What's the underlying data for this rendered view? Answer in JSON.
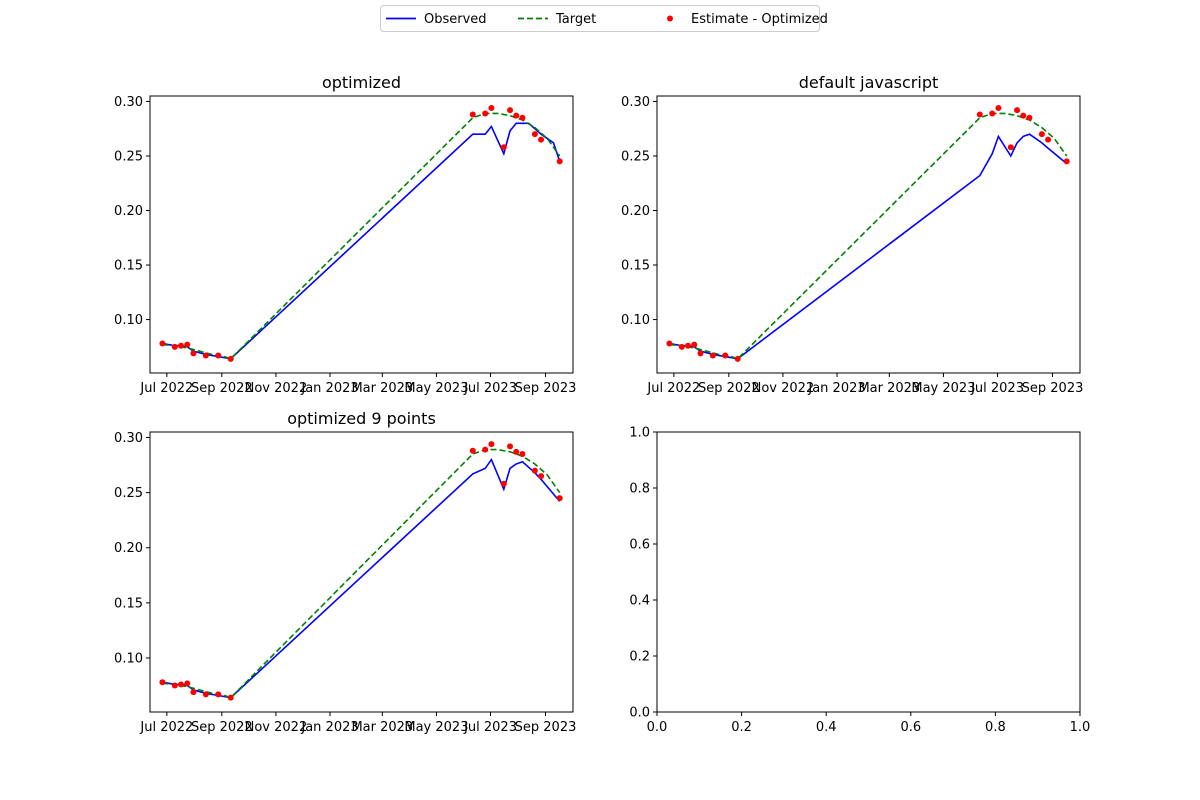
{
  "legend": {
    "items": [
      {
        "label": "Observed",
        "kind": "line",
        "color": "#0000ff"
      },
      {
        "label": "Target",
        "kind": "dashed",
        "color": "#008000"
      },
      {
        "label": "Estimate - Optimized",
        "kind": "marker",
        "color": "#ff0000"
      }
    ],
    "placement": "top-center"
  },
  "chart_data": [
    {
      "type": "line",
      "title": "optimized",
      "x_type": "date",
      "xlim": [
        "2022-06-12",
        "2023-10-02"
      ],
      "ylim": [
        0.051,
        0.305
      ],
      "x_ticks": [
        {
          "date": "2022-07-01",
          "label": "Jul 2022"
        },
        {
          "date": "2022-09-01",
          "label": "Sep 2022"
        },
        {
          "date": "2022-11-01",
          "label": "Nov 2022"
        },
        {
          "date": "2023-01-01",
          "label": "Jan 2023"
        },
        {
          "date": "2023-03-01",
          "label": "Mar 2023"
        },
        {
          "date": "2023-05-01",
          "label": "May 2023"
        },
        {
          "date": "2023-07-01",
          "label": "Jul 2023"
        },
        {
          "date": "2023-09-01",
          "label": "Sep 2023"
        }
      ],
      "y_ticks": [
        0.1,
        0.15,
        0.2,
        0.25,
        0.3
      ],
      "y_tick_labels": [
        "0.10",
        "0.15",
        "0.20",
        "0.25",
        "0.30"
      ],
      "series": [
        {
          "name": "Observed",
          "style": "line",
          "color": "#0000ff",
          "x": [
            "2022-06-26",
            "2022-07-10",
            "2022-07-17",
            "2022-07-24",
            "2022-07-31",
            "2022-08-14",
            "2022-08-28",
            "2022-09-11",
            "2023-06-11",
            "2023-06-25",
            "2023-07-02",
            "2023-07-16",
            "2023-07-23",
            "2023-07-30",
            "2023-08-13",
            "2023-08-27",
            "2023-09-10",
            "2023-09-17"
          ],
          "y": [
            0.078,
            0.076,
            0.076,
            0.075,
            0.071,
            0.068,
            0.066,
            0.064,
            0.27,
            0.27,
            0.277,
            0.252,
            0.273,
            0.28,
            0.28,
            0.27,
            0.262,
            0.245
          ]
        },
        {
          "name": "Target",
          "style": "dashed",
          "color": "#008000",
          "x": [
            "2022-06-26",
            "2022-07-10",
            "2022-07-24",
            "2022-08-07",
            "2022-08-21",
            "2022-09-04",
            "2022-09-11",
            "2023-06-11",
            "2023-06-25",
            "2023-07-09",
            "2023-07-23",
            "2023-08-06",
            "2023-08-20",
            "2023-09-03",
            "2023-09-17"
          ],
          "y": [
            0.077,
            0.076,
            0.074,
            0.071,
            0.068,
            0.066,
            0.064,
            0.285,
            0.289,
            0.289,
            0.287,
            0.283,
            0.276,
            0.266,
            0.25
          ]
        },
        {
          "name": "Estimate - Optimized",
          "style": "marker",
          "color": "#ff0000",
          "x": [
            "2022-06-26",
            "2022-07-10",
            "2022-07-17",
            "2022-07-24",
            "2022-07-31",
            "2022-08-14",
            "2022-08-28",
            "2022-09-11",
            "2023-06-11",
            "2023-06-25",
            "2023-07-02",
            "2023-07-16",
            "2023-07-23",
            "2023-07-30",
            "2023-08-06",
            "2023-08-20",
            "2023-08-27",
            "2023-09-17"
          ],
          "y": [
            0.078,
            0.075,
            0.076,
            0.077,
            0.069,
            0.067,
            0.067,
            0.064,
            0.288,
            0.289,
            0.294,
            0.258,
            0.292,
            0.287,
            0.285,
            0.27,
            0.265,
            0.245
          ]
        }
      ]
    },
    {
      "type": "line",
      "title": "default javascript",
      "x_type": "date",
      "xlim": [
        "2022-06-12",
        "2023-10-02"
      ],
      "ylim": [
        0.051,
        0.305
      ],
      "x_ticks": [
        {
          "date": "2022-07-01",
          "label": "Jul 2022"
        },
        {
          "date": "2022-09-01",
          "label": "Sep 2022"
        },
        {
          "date": "2022-11-01",
          "label": "Nov 2022"
        },
        {
          "date": "2023-01-01",
          "label": "Jan 2023"
        },
        {
          "date": "2023-03-01",
          "label": "Mar 2023"
        },
        {
          "date": "2023-05-01",
          "label": "May 2023"
        },
        {
          "date": "2023-07-01",
          "label": "Jul 2023"
        },
        {
          "date": "2023-09-01",
          "label": "Sep 2023"
        }
      ],
      "y_ticks": [
        0.1,
        0.15,
        0.2,
        0.25,
        0.3
      ],
      "y_tick_labels": [
        "0.10",
        "0.15",
        "0.20",
        "0.25",
        "0.30"
      ],
      "series": [
        {
          "name": "Observed",
          "style": "line",
          "color": "#0000ff",
          "x": [
            "2022-06-26",
            "2022-07-10",
            "2022-07-17",
            "2022-07-24",
            "2022-07-31",
            "2022-08-14",
            "2022-08-28",
            "2022-09-11",
            "2023-06-11",
            "2023-06-25",
            "2023-07-02",
            "2023-07-16",
            "2023-07-23",
            "2023-07-30",
            "2023-08-06",
            "2023-08-20",
            "2023-08-27",
            "2023-09-17"
          ],
          "y": [
            0.078,
            0.076,
            0.076,
            0.075,
            0.071,
            0.068,
            0.066,
            0.064,
            0.232,
            0.252,
            0.268,
            0.25,
            0.262,
            0.268,
            0.27,
            0.262,
            0.257,
            0.243
          ]
        },
        {
          "name": "Target",
          "style": "dashed",
          "color": "#008000",
          "x": [
            "2022-06-26",
            "2022-07-10",
            "2022-07-24",
            "2022-08-07",
            "2022-08-21",
            "2022-09-04",
            "2022-09-11",
            "2023-06-11",
            "2023-06-25",
            "2023-07-09",
            "2023-07-23",
            "2023-08-06",
            "2023-08-20",
            "2023-09-03",
            "2023-09-17"
          ],
          "y": [
            0.077,
            0.076,
            0.074,
            0.071,
            0.068,
            0.066,
            0.064,
            0.285,
            0.289,
            0.289,
            0.287,
            0.283,
            0.276,
            0.266,
            0.25
          ]
        },
        {
          "name": "Estimate - Optimized",
          "style": "marker",
          "color": "#ff0000",
          "x": [
            "2022-06-26",
            "2022-07-10",
            "2022-07-17",
            "2022-07-24",
            "2022-07-31",
            "2022-08-14",
            "2022-08-28",
            "2022-09-11",
            "2023-06-11",
            "2023-06-25",
            "2023-07-02",
            "2023-07-16",
            "2023-07-23",
            "2023-07-30",
            "2023-08-06",
            "2023-08-20",
            "2023-08-27",
            "2023-09-17"
          ],
          "y": [
            0.078,
            0.075,
            0.076,
            0.077,
            0.069,
            0.067,
            0.067,
            0.064,
            0.288,
            0.289,
            0.294,
            0.258,
            0.292,
            0.287,
            0.285,
            0.27,
            0.265,
            0.245
          ]
        }
      ]
    },
    {
      "type": "line",
      "title": "optimized 9 points",
      "x_type": "date",
      "xlim": [
        "2022-06-12",
        "2023-10-02"
      ],
      "ylim": [
        0.051,
        0.305
      ],
      "x_ticks": [
        {
          "date": "2022-07-01",
          "label": "Jul 2022"
        },
        {
          "date": "2022-09-01",
          "label": "Sep 2022"
        },
        {
          "date": "2022-11-01",
          "label": "Nov 2022"
        },
        {
          "date": "2023-01-01",
          "label": "Jan 2023"
        },
        {
          "date": "2023-03-01",
          "label": "Mar 2023"
        },
        {
          "date": "2023-05-01",
          "label": "May 2023"
        },
        {
          "date": "2023-07-01",
          "label": "Jul 2023"
        },
        {
          "date": "2023-09-01",
          "label": "Sep 2023"
        }
      ],
      "y_ticks": [
        0.1,
        0.15,
        0.2,
        0.25,
        0.3
      ],
      "y_tick_labels": [
        "0.10",
        "0.15",
        "0.20",
        "0.25",
        "0.30"
      ],
      "series": [
        {
          "name": "Observed",
          "style": "line",
          "color": "#0000ff",
          "x": [
            "2022-06-26",
            "2022-07-10",
            "2022-07-17",
            "2022-07-24",
            "2022-07-31",
            "2022-08-14",
            "2022-08-28",
            "2022-09-11",
            "2023-06-11",
            "2023-06-25",
            "2023-07-02",
            "2023-07-16",
            "2023-07-23",
            "2023-07-30",
            "2023-08-06",
            "2023-08-20",
            "2023-08-27",
            "2023-09-17"
          ],
          "y": [
            0.078,
            0.076,
            0.076,
            0.075,
            0.071,
            0.068,
            0.066,
            0.064,
            0.267,
            0.272,
            0.28,
            0.253,
            0.272,
            0.276,
            0.278,
            0.268,
            0.262,
            0.242
          ]
        },
        {
          "name": "Target",
          "style": "dashed",
          "color": "#008000",
          "x": [
            "2022-06-26",
            "2022-07-10",
            "2022-07-24",
            "2022-08-07",
            "2022-08-21",
            "2022-09-04",
            "2022-09-11",
            "2023-06-11",
            "2023-06-25",
            "2023-07-09",
            "2023-07-23",
            "2023-08-06",
            "2023-08-20",
            "2023-09-03",
            "2023-09-17"
          ],
          "y": [
            0.077,
            0.076,
            0.074,
            0.071,
            0.068,
            0.066,
            0.064,
            0.285,
            0.289,
            0.289,
            0.287,
            0.283,
            0.276,
            0.266,
            0.25
          ]
        },
        {
          "name": "Estimate - Optimized",
          "style": "marker",
          "color": "#ff0000",
          "x": [
            "2022-06-26",
            "2022-07-10",
            "2022-07-17",
            "2022-07-24",
            "2022-07-31",
            "2022-08-14",
            "2022-08-28",
            "2022-09-11",
            "2023-06-11",
            "2023-06-25",
            "2023-07-02",
            "2023-07-16",
            "2023-07-23",
            "2023-07-30",
            "2023-08-06",
            "2023-08-20",
            "2023-08-27",
            "2023-09-17"
          ],
          "y": [
            0.078,
            0.075,
            0.076,
            0.077,
            0.069,
            0.067,
            0.067,
            0.064,
            0.288,
            0.289,
            0.294,
            0.258,
            0.292,
            0.287,
            0.285,
            0.27,
            0.265,
            0.245
          ]
        }
      ]
    },
    {
      "type": "line",
      "title": "",
      "x_type": "number",
      "xlim": [
        0,
        1
      ],
      "ylim": [
        0,
        1
      ],
      "x_ticks": [
        0.0,
        0.2,
        0.4,
        0.6,
        0.8,
        1.0
      ],
      "x_tick_labels": [
        "0.0",
        "0.2",
        "0.4",
        "0.6",
        "0.8",
        "1.0"
      ],
      "y_ticks": [
        0.0,
        0.2,
        0.4,
        0.6,
        0.8,
        1.0
      ],
      "y_tick_labels": [
        "0.0",
        "0.2",
        "0.4",
        "0.6",
        "0.8",
        "1.0"
      ],
      "series": []
    }
  ]
}
